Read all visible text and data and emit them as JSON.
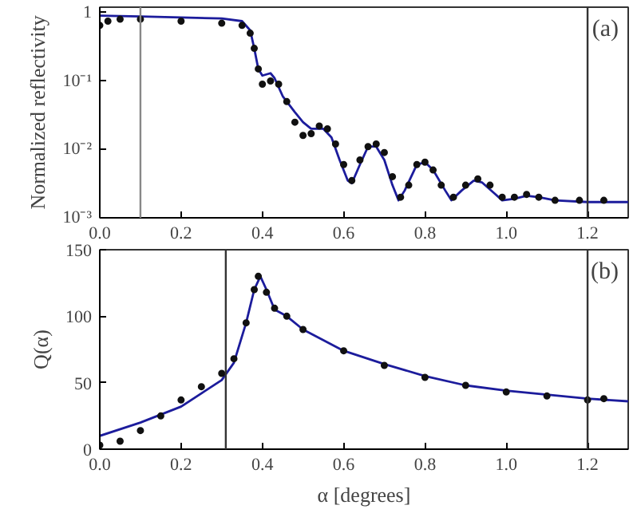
{
  "chart_data": [
    {
      "type": "line",
      "ylabel": "Normalized reflectivity",
      "log": "y",
      "grid": false,
      "xlim": [
        0,
        1.3
      ],
      "xticks": [
        {
          "value": 0,
          "label": "0.0"
        },
        {
          "value": 0.2,
          "label": "0.2"
        },
        {
          "value": 0.4,
          "label": "0.4"
        },
        {
          "value": 0.6,
          "label": "0.6"
        },
        {
          "value": 0.8,
          "label": "0.8"
        },
        {
          "value": 1.0,
          "label": "1.0"
        },
        {
          "value": 1.2,
          "label": "1.2"
        }
      ],
      "ylim": [
        0.001,
        1.2
      ],
      "yticks": [
        {
          "value": 0.001,
          "label": "10⁻³"
        },
        {
          "value": 0.01,
          "label": "10⁻²"
        },
        {
          "value": 0.1,
          "label": "10⁻¹"
        },
        1
      ],
      "annotations": [
        "(a)"
      ],
      "ref_lines": [
        {
          "axis": "x",
          "value": 0.1,
          "color": "#888888"
        },
        {
          "axis": "x",
          "value": 1.2,
          "color": "#333333"
        }
      ],
      "series": [
        {
          "type": "scatter",
          "marker": "circle",
          "color": "#111111",
          "x": [
            0,
            0.02,
            0.05,
            0.1,
            0.2,
            0.3,
            0.35,
            0.37,
            0.38,
            0.39,
            0.4,
            0.42,
            0.44,
            0.46,
            0.48,
            0.5,
            0.52,
            0.54,
            0.56,
            0.58,
            0.6,
            0.62,
            0.64,
            0.66,
            0.68,
            0.7,
            0.72,
            0.74,
            0.76,
            0.78,
            0.8,
            0.82,
            0.84,
            0.87,
            0.9,
            0.93,
            0.96,
            0.99,
            1.02,
            1.05,
            1.08,
            1.12,
            1.18,
            1.24
          ],
          "values": [
            0.65,
            0.75,
            0.8,
            0.8,
            0.75,
            0.7,
            0.65,
            0.5,
            0.3,
            0.15,
            0.09,
            0.1,
            0.09,
            0.05,
            0.025,
            0.016,
            0.017,
            0.022,
            0.02,
            0.012,
            0.006,
            0.0035,
            0.007,
            0.011,
            0.012,
            0.009,
            0.004,
            0.002,
            0.003,
            0.006,
            0.0065,
            0.005,
            0.003,
            0.002,
            0.003,
            0.0037,
            0.003,
            0.002,
            0.002,
            0.0022,
            0.002,
            0.0018,
            0.0018,
            0.0018
          ]
        },
        {
          "line_style": "solid",
          "color": "#1c1c9c",
          "x": [
            0,
            0.1,
            0.2,
            0.3,
            0.35,
            0.37,
            0.38,
            0.39,
            0.4,
            0.42,
            0.43,
            0.45,
            0.48,
            0.5,
            0.52,
            0.55,
            0.57,
            0.59,
            0.61,
            0.62,
            0.64,
            0.66,
            0.68,
            0.7,
            0.72,
            0.735,
            0.75,
            0.78,
            0.8,
            0.82,
            0.85,
            0.865,
            0.89,
            0.92,
            0.94,
            0.97,
            0.99,
            1.02,
            1.05,
            1.08,
            1.12,
            1.2,
            1.3
          ],
          "values": [
            0.9,
            0.88,
            0.85,
            0.82,
            0.75,
            0.55,
            0.3,
            0.15,
            0.12,
            0.13,
            0.11,
            0.06,
            0.035,
            0.025,
            0.02,
            0.02,
            0.015,
            0.007,
            0.0035,
            0.0032,
            0.006,
            0.011,
            0.011,
            0.007,
            0.003,
            0.0018,
            0.0025,
            0.006,
            0.0065,
            0.005,
            0.0025,
            0.0018,
            0.0025,
            0.0035,
            0.0033,
            0.0023,
            0.0018,
            0.0019,
            0.0021,
            0.002,
            0.0018,
            0.0017,
            0.0017
          ]
        }
      ]
    },
    {
      "type": "line",
      "xlabel": "α [degrees]",
      "ylabel": "Q(α)",
      "grid": false,
      "xlim": [
        0,
        1.3
      ],
      "xticks": [
        {
          "value": 0,
          "label": "0.0"
        },
        {
          "value": 0.2,
          "label": "0.2"
        },
        {
          "value": 0.4,
          "label": "0.4"
        },
        {
          "value": 0.6,
          "label": "0.6"
        },
        {
          "value": 0.8,
          "label": "0.8"
        },
        {
          "value": 1.0,
          "label": "1.0"
        },
        {
          "value": 1.2,
          "label": "1.2"
        }
      ],
      "ylim": [
        0,
        150
      ],
      "yticks": [
        0,
        50,
        100,
        150
      ],
      "annotations": [
        "(b)"
      ],
      "ref_lines": [
        {
          "axis": "x",
          "value": 0.31,
          "color": "#333333"
        },
        {
          "axis": "x",
          "value": 1.2,
          "color": "#333333"
        }
      ],
      "series": [
        {
          "type": "scatter",
          "marker": "circle",
          "color": "#111111",
          "x": [
            0,
            0.05,
            0.1,
            0.15,
            0.2,
            0.25,
            0.3,
            0.33,
            0.36,
            0.38,
            0.39,
            0.41,
            0.43,
            0.46,
            0.5,
            0.6,
            0.7,
            0.8,
            0.9,
            1.0,
            1.1,
            1.2,
            1.24
          ],
          "values": [
            3,
            6,
            14,
            25,
            37,
            47,
            57,
            68,
            95,
            120,
            130,
            118,
            106,
            100,
            90,
            74,
            63,
            54,
            48,
            43,
            40,
            37,
            38
          ]
        },
        {
          "line_style": "solid",
          "color": "#1c1c9c",
          "x": [
            0,
            0.1,
            0.2,
            0.3,
            0.33,
            0.36,
            0.38,
            0.395,
            0.41,
            0.43,
            0.46,
            0.5,
            0.6,
            0.7,
            0.8,
            0.9,
            1.0,
            1.1,
            1.2,
            1.3
          ],
          "values": [
            10,
            20,
            32,
            52,
            65,
            95,
            120,
            130,
            120,
            105,
            100,
            90,
            74,
            64,
            55,
            48,
            44,
            41,
            38,
            36
          ]
        }
      ]
    }
  ]
}
